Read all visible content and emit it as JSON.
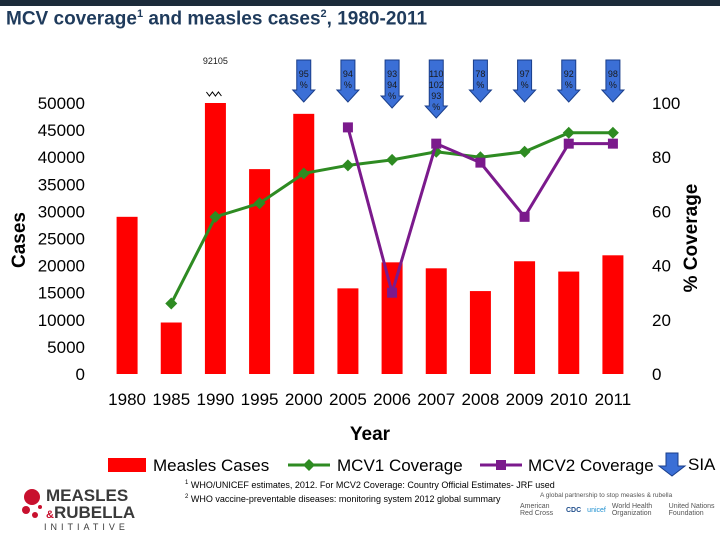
{
  "slide": {
    "title_text": "MCV coverage",
    "title_sup1": "1",
    "title_mid": " and measles cases",
    "title_sup2": "2",
    "title_end": ", 1980-2011"
  },
  "chart_data": {
    "type": "bar",
    "categories": [
      "1980",
      "1985",
      "1990",
      "1995",
      "2000",
      "2005",
      "2006",
      "2007",
      "2008",
      "2009",
      "2010",
      "2011"
    ],
    "xlabel": "Year",
    "ylabel_left": "Cases",
    "ylabel_right": "% Coverage",
    "ylim_left": [
      0,
      50000
    ],
    "ylim_right": [
      0,
      100
    ],
    "yticks_left": [
      "50000",
      "45000",
      "40000",
      "35000",
      "30000",
      "25000",
      "20000",
      "15000",
      "10000",
      "5000",
      "0"
    ],
    "yticks_right": [
      "100",
      "80",
      "60",
      "40",
      "20",
      "0"
    ],
    "series": [
      {
        "name": "Measles Cases",
        "kind": "bar",
        "axis": "left",
        "color": "#ff0000",
        "values": [
          29000,
          9500,
          50000,
          37800,
          48000,
          15800,
          20600,
          19500,
          15300,
          20800,
          18900,
          21900
        ]
      },
      {
        "name": "MCV1 Coverage",
        "kind": "line",
        "axis": "right",
        "color": "#2e8b22",
        "marker": "diamond",
        "values": [
          null,
          26,
          58,
          63,
          74,
          77,
          79,
          82,
          80,
          82,
          89,
          89
        ]
      },
      {
        "name": "MCV2 Coverage",
        "kind": "line",
        "axis": "right",
        "color": "#7b1a8c",
        "marker": "square",
        "values": [
          null,
          null,
          null,
          null,
          null,
          91,
          30,
          85,
          78,
          58,
          85,
          85
        ]
      }
    ],
    "bar_label_1990": "92105",
    "sia_arrows": [
      {
        "category": "2000",
        "label": "95\n%"
      },
      {
        "category": "2005",
        "label": "94\n%"
      },
      {
        "category": "2006",
        "label": "93\n94\n%"
      },
      {
        "category": "2007",
        "label": "110\n102\n93\n%"
      },
      {
        "category": "2008",
        "label": "78\n%"
      },
      {
        "category": "2009",
        "label": "97\n%"
      },
      {
        "category": "2010",
        "label": "92\n%"
      },
      {
        "category": "2011",
        "label": "98\n%"
      }
    ],
    "legend": {
      "placement": "bottom",
      "items": [
        "Measles Cases",
        "MCV1 Coverage",
        "MCV2 Coverage",
        "SIA"
      ]
    }
  },
  "footnotes": {
    "note1_num": "1",
    "note1": "WHO/UNICEF estimates, 2012. For MCV2 Coverage: Country Official Estimates- JRF used",
    "note2_num": "2",
    "note2": "WHO vaccine-preventable diseases: monitoring system 2012 global summary"
  },
  "branding": {
    "mri_line1": "MEASLES",
    "mri_amp": "&",
    "mri_line2": "RUBELLA",
    "mri_line3": "INITIATIVE",
    "partnership": "A global partnership to stop measles & rubella",
    "partners": [
      "American Red Cross",
      "CDC",
      "unicef",
      "World Health Organization",
      "United Nations Foundation"
    ]
  }
}
